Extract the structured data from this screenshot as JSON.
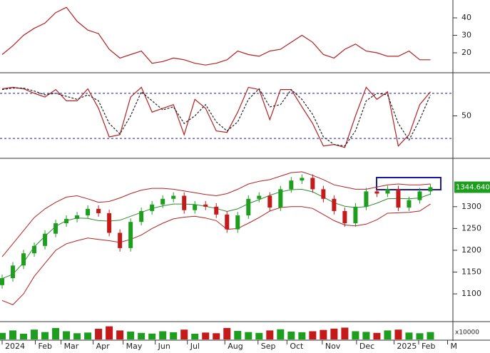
{
  "chart_data": [
    {
      "type": "line",
      "panel": "adx",
      "values": [
        19,
        24,
        30,
        34,
        37,
        43,
        46,
        38,
        33,
        31,
        22,
        17,
        19,
        21,
        14,
        15,
        17,
        16,
        14,
        13,
        14,
        16,
        21,
        19,
        18,
        21,
        22,
        26,
        30,
        26,
        19,
        17,
        22,
        25,
        21,
        20,
        18,
        18,
        21,
        16,
        16
      ],
      "color": "#b22222",
      "ylim": [
        9.4,
        49.4
      ],
      "yticks": [
        20,
        30,
        40
      ]
    },
    {
      "type": "line",
      "panel": "stochastic",
      "series": [
        {
          "values": [
            86,
            88,
            86,
            80,
            75,
            85,
            70,
            70,
            86,
            60,
            22,
            25,
            75,
            88,
            55,
            60,
            65,
            25,
            72,
            60,
            30,
            28,
            55,
            88,
            85,
            45,
            85,
            85,
            62,
            40,
            10,
            12,
            8,
            50,
            88,
            72,
            82,
            10,
            25,
            65,
            82
          ],
          "color": "#b22222",
          "dash": false
        },
        {
          "values": [
            85,
            87,
            87,
            83,
            78,
            80,
            76,
            72,
            78,
            70,
            40,
            26,
            50,
            82,
            70,
            58,
            62,
            40,
            50,
            65,
            42,
            30,
            42,
            72,
            86,
            62,
            65,
            85,
            72,
            52,
            22,
            12,
            10,
            30,
            70,
            80,
            78,
            40,
            18,
            45,
            78
          ],
          "color": "#222222",
          "dash": true
        }
      ],
      "levels": [
        80,
        20
      ],
      "level_color": "#1a1aa0",
      "ylim": [
        -4.5,
        104.5
      ],
      "yticks": [
        50
      ]
    },
    {
      "type": "candlestick",
      "panel": "price",
      "open": [
        1120,
        1136,
        1165,
        1193,
        1210,
        1238,
        1262,
        1272,
        1280,
        1295,
        1285,
        1240,
        1205,
        1265,
        1290,
        1305,
        1318,
        1325,
        1292,
        1305,
        1300,
        1282,
        1248,
        1280,
        1318,
        1325,
        1298,
        1340,
        1360,
        1366,
        1340,
        1318,
        1290,
        1262,
        1300,
        1335,
        1330,
        1340,
        1298,
        1315,
        1335
      ],
      "high": [
        1144,
        1173,
        1201,
        1218,
        1246,
        1270,
        1280,
        1288,
        1303,
        1303,
        1293,
        1248,
        1273,
        1298,
        1313,
        1326,
        1333,
        1333,
        1313,
        1313,
        1308,
        1290,
        1288,
        1326,
        1333,
        1333,
        1348,
        1368,
        1374,
        1374,
        1348,
        1326,
        1298,
        1308,
        1343,
        1343,
        1348,
        1348,
        1323,
        1343,
        1352
      ],
      "low": [
        1112,
        1128,
        1157,
        1185,
        1202,
        1230,
        1254,
        1264,
        1272,
        1277,
        1232,
        1197,
        1197,
        1257,
        1282,
        1297,
        1310,
        1284,
        1284,
        1292,
        1274,
        1240,
        1240,
        1272,
        1310,
        1290,
        1290,
        1332,
        1352,
        1332,
        1310,
        1282,
        1254,
        1254,
        1292,
        1322,
        1322,
        1290,
        1290,
        1307,
        1327
      ],
      "close": [
        1136,
        1165,
        1193,
        1210,
        1238,
        1262,
        1272,
        1280,
        1295,
        1285,
        1240,
        1205,
        1265,
        1290,
        1305,
        1318,
        1325,
        1292,
        1305,
        1300,
        1282,
        1248,
        1280,
        1318,
        1325,
        1298,
        1340,
        1360,
        1366,
        1340,
        1318,
        1290,
        1262,
        1300,
        1335,
        1330,
        1340,
        1298,
        1315,
        1335,
        1344.64
      ],
      "up_color": "#1e9e1e",
      "down_color": "#c41a1a",
      "bands": {
        "upper": [
          1185,
          1215,
          1245,
          1275,
          1295,
          1310,
          1322,
          1325,
          1318,
          1310,
          1312,
          1320,
          1330,
          1338,
          1342,
          1342,
          1340,
          1336,
          1332,
          1328,
          1325,
          1330,
          1340,
          1352,
          1358,
          1362,
          1370,
          1378,
          1380,
          1372,
          1362,
          1350,
          1345,
          1340,
          1340,
          1345,
          1350,
          1352,
          1350,
          1350,
          1352
        ],
        "middle": [
          1135,
          1145,
          1172,
          1208,
          1232,
          1255,
          1268,
          1274,
          1273,
          1268,
          1267,
          1269,
          1278,
          1287,
          1296,
          1302,
          1306,
          1306,
          1305,
          1301,
          1296,
          1289,
          1295,
          1307,
          1316,
          1326,
          1334,
          1339,
          1340,
          1334,
          1322,
          1309,
          1301,
          1298,
          1300,
          1308,
          1318,
          1319,
          1318,
          1320,
          1329
        ],
        "lower": [
          1085,
          1075,
          1100,
          1140,
          1170,
          1200,
          1215,
          1222,
          1228,
          1225,
          1222,
          1218,
          1225,
          1235,
          1250,
          1262,
          1272,
          1276,
          1278,
          1274,
          1268,
          1248,
          1250,
          1262,
          1275,
          1290,
          1298,
          1300,
          1300,
          1296,
          1282,
          1268,
          1258,
          1256,
          1260,
          1270,
          1285,
          1286,
          1287,
          1290,
          1306
        ],
        "color": "#b22222",
        "middle_color": "#2e8b2e"
      },
      "last_price": {
        "value": 1344.64,
        "label": "1344.640"
      },
      "last_price_color": "#1e9e1e",
      "ylim": [
        1038,
        1406
      ],
      "yticks": [
        1100,
        1150,
        1200,
        1250,
        1300
      ]
    },
    {
      "type": "bar",
      "panel": "volume",
      "values": [
        40,
        55,
        35,
        60,
        45,
        70,
        50,
        38,
        42,
        65,
        80,
        55,
        48,
        40,
        36,
        50,
        44,
        60,
        35,
        42,
        38,
        70,
        52,
        45,
        40,
        55,
        62,
        48,
        44,
        50,
        58,
        66,
        72,
        50,
        46,
        40,
        55,
        60,
        42,
        38,
        45
      ],
      "ylim": [
        0,
        100
      ],
      "unit_label": "x10000",
      "xlim": [
        -0.2,
        42.1
      ],
      "xticks": [
        {
          "value": 0,
          "label": "2024"
        },
        {
          "value": 3.1,
          "label": "Feb"
        },
        {
          "value": 5.5,
          "label": "Mar"
        },
        {
          "value": 8.5,
          "label": "Apr"
        },
        {
          "value": 11.3,
          "label": "May"
        },
        {
          "value": 14.3,
          "label": "Jun"
        },
        {
          "value": 17.3,
          "label": "Jul"
        },
        {
          "value": 20.8,
          "label": "Aug"
        },
        {
          "value": 23.9,
          "label": "Sep"
        },
        {
          "value": 26.6,
          "label": "Oct"
        },
        {
          "value": 29.9,
          "label": "Nov"
        },
        {
          "value": 33.1,
          "label": "Dec"
        },
        {
          "value": 36.6,
          "label": "2025"
        },
        {
          "value": 38.9,
          "label": "Feb"
        },
        {
          "value": 41.6,
          "label": "M"
        }
      ]
    }
  ]
}
